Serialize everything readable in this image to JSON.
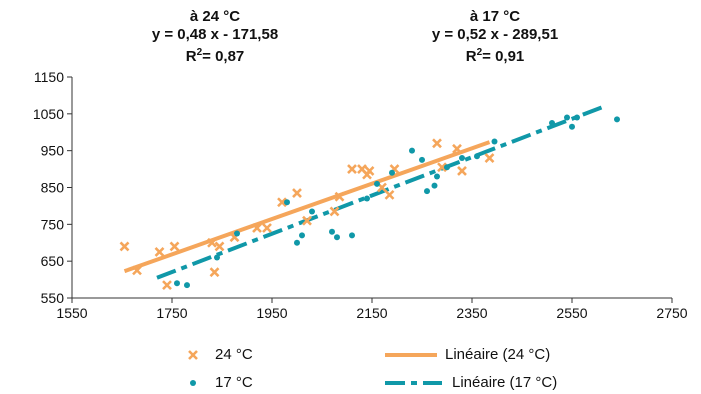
{
  "annotations": {
    "left": {
      "line1": "à 24 °C",
      "line2": "y = 0,48 x - 171,58",
      "r2_prefix": "R",
      "r2_sup": "2",
      "r2_value": "= 0,87"
    },
    "right": {
      "line1": "à 17 °C",
      "line2": "y = 0,52 x - 289,51",
      "r2_prefix": "R",
      "r2_sup": "2",
      "r2_value": "= 0,91"
    }
  },
  "legend": {
    "series_24": "24 °C",
    "series_17": "17 °C",
    "trend_24": "Linéaire (24 °C)",
    "trend_17": "Linéaire (17 °C)"
  },
  "colors": {
    "series_24": "#F5A65B",
    "series_17": "#1098A8",
    "axis": "#333333"
  },
  "chart_data": {
    "type": "scatter",
    "xlim": [
      1550,
      2750
    ],
    "ylim": [
      550,
      1150
    ],
    "x_ticks": [
      "1550",
      "1750",
      "1950",
      "2150",
      "2350",
      "2550",
      "2750"
    ],
    "y_ticks": [
      "550",
      "650",
      "750",
      "850",
      "950",
      "1050",
      "1150"
    ],
    "grid": false,
    "legend_position": "bottom",
    "series": [
      {
        "name": "24 °C",
        "marker": "x",
        "points": [
          [
            1655,
            690
          ],
          [
            1680,
            625
          ],
          [
            1725,
            675
          ],
          [
            1740,
            585
          ],
          [
            1755,
            690
          ],
          [
            1830,
            700
          ],
          [
            1835,
            620
          ],
          [
            1845,
            690
          ],
          [
            1875,
            715
          ],
          [
            1920,
            740
          ],
          [
            1940,
            740
          ],
          [
            1970,
            810
          ],
          [
            2000,
            835
          ],
          [
            2020,
            760
          ],
          [
            2075,
            785
          ],
          [
            2085,
            825
          ],
          [
            2110,
            900
          ],
          [
            2130,
            900
          ],
          [
            2140,
            885
          ],
          [
            2145,
            895
          ],
          [
            2170,
            850
          ],
          [
            2185,
            830
          ],
          [
            2195,
            900
          ],
          [
            2280,
            970
          ],
          [
            2290,
            905
          ],
          [
            2320,
            955
          ],
          [
            2330,
            895
          ],
          [
            2385,
            930
          ]
        ]
      },
      {
        "name": "17 °C",
        "marker": "dot",
        "points": [
          [
            1760,
            590
          ],
          [
            1780,
            585
          ],
          [
            1840,
            660
          ],
          [
            1880,
            725
          ],
          [
            1980,
            810
          ],
          [
            2000,
            700
          ],
          [
            2010,
            720
          ],
          [
            2030,
            785
          ],
          [
            2070,
            730
          ],
          [
            2080,
            715
          ],
          [
            2110,
            720
          ],
          [
            2140,
            820
          ],
          [
            2160,
            860
          ],
          [
            2190,
            890
          ],
          [
            2230,
            950
          ],
          [
            2250,
            925
          ],
          [
            2260,
            840
          ],
          [
            2275,
            855
          ],
          [
            2280,
            880
          ],
          [
            2300,
            905
          ],
          [
            2330,
            930
          ],
          [
            2360,
            935
          ],
          [
            2395,
            975
          ],
          [
            2510,
            1025
          ],
          [
            2540,
            1040
          ],
          [
            2550,
            1015
          ],
          [
            2560,
            1040
          ],
          [
            2640,
            1035
          ]
        ]
      }
    ],
    "trendlines": [
      {
        "name": "Linéaire (24 °C)",
        "x_range": [
          1655,
          2385
        ],
        "slope": 0.48,
        "intercept": -171.58,
        "style": "solid"
      },
      {
        "name": "Linéaire (17 °C)",
        "x_range": [
          1720,
          2620
        ],
        "slope": 0.52,
        "intercept": -289.51,
        "style": "dashdot"
      }
    ]
  }
}
